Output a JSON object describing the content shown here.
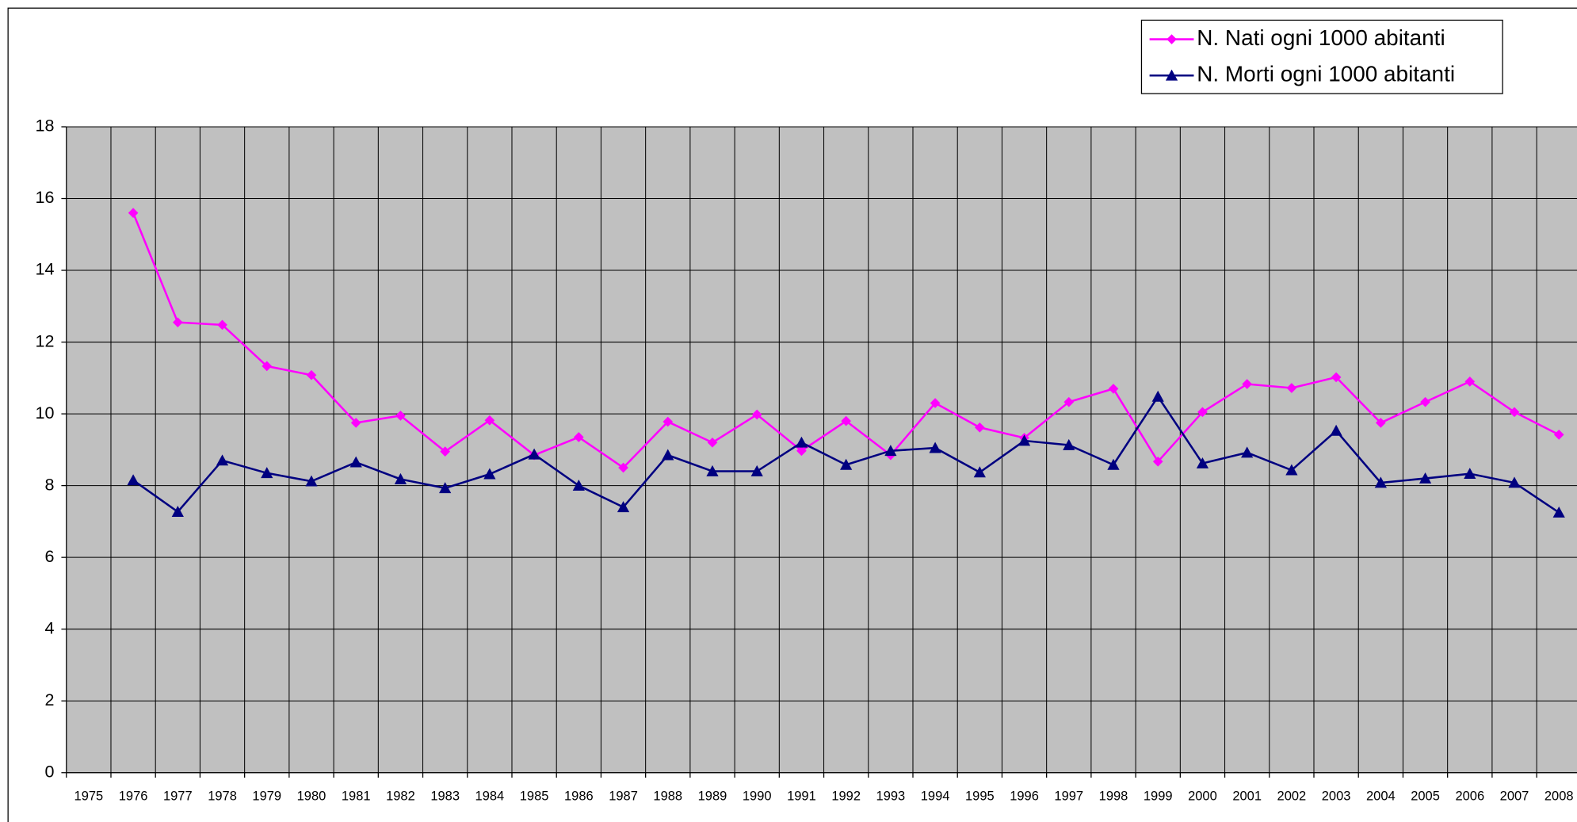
{
  "chart_data": {
    "type": "line",
    "categories": [
      "1975",
      "1976",
      "1977",
      "1978",
      "1979",
      "1980",
      "1981",
      "1982",
      "1983",
      "1984",
      "1985",
      "1986",
      "1987",
      "1988",
      "1989",
      "1990",
      "1991",
      "1992",
      "1993",
      "1994",
      "1995",
      "1996",
      "1997",
      "1998",
      "1999",
      "2000",
      "2001",
      "2002",
      "2003",
      "2004",
      "2005",
      "2006",
      "2007",
      "2008"
    ],
    "series": [
      {
        "name": "N. Nati ogni 1000 abitanti",
        "color": "#ff00ff",
        "marker": "diamond",
        "values": [
          null,
          15.6,
          12.55,
          12.48,
          11.33,
          11.08,
          9.75,
          9.95,
          8.95,
          9.82,
          8.85,
          9.35,
          8.5,
          9.78,
          9.2,
          9.98,
          8.97,
          9.8,
          8.85,
          10.3,
          9.62,
          9.33,
          10.33,
          10.7,
          8.67,
          10.05,
          10.83,
          10.72,
          11.02,
          9.75,
          10.33,
          10.9,
          10.05,
          9.42
        ]
      },
      {
        "name": "N. Morti ogni 1000 abitanti",
        "color": "#000080",
        "marker": "triangle",
        "values": [
          null,
          8.15,
          7.27,
          8.7,
          8.35,
          8.12,
          8.65,
          8.18,
          7.93,
          8.32,
          8.87,
          8.0,
          7.4,
          8.85,
          8.4,
          8.4,
          9.2,
          8.58,
          8.97,
          9.05,
          8.37,
          9.25,
          9.13,
          8.58,
          10.48,
          8.62,
          8.92,
          8.43,
          9.53,
          8.08,
          8.2,
          8.33,
          8.08,
          7.25
        ]
      }
    ],
    "ylim": [
      0,
      18
    ],
    "yticks": [
      0,
      2,
      4,
      6,
      8,
      10,
      12,
      14,
      16,
      18
    ],
    "grid": true,
    "plot_background": "#c0c0c0",
    "legend": "top-right"
  }
}
